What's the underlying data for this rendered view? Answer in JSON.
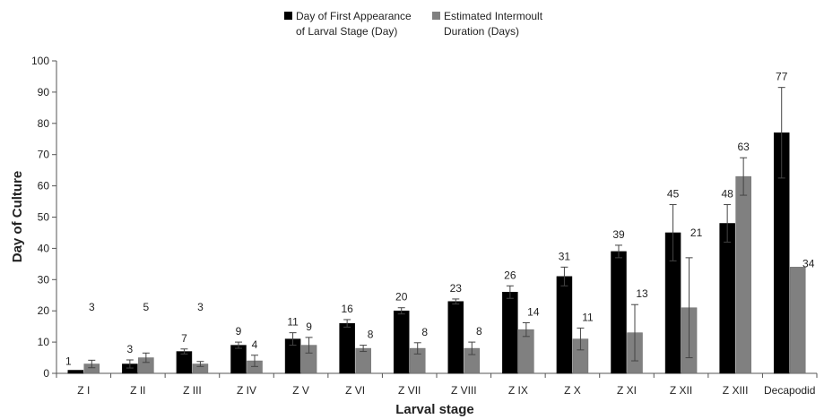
{
  "chart_data": {
    "type": "bar",
    "title": "",
    "xlabel": "Larval stage",
    "ylabel": "Day of Culture",
    "ylim": [
      0,
      100
    ],
    "yticks": [
      0,
      10,
      20,
      30,
      40,
      50,
      60,
      70,
      80,
      90,
      100
    ],
    "grid": false,
    "legend_position": "top",
    "categories": [
      "Z I",
      "Z II",
      "Z III",
      "Z IV",
      "Z V",
      "Z VI",
      "Z VII",
      "Z VIII",
      "Z IX",
      "Z X",
      "Z XI",
      "Z XII",
      "Z XIII",
      "Decapodid"
    ],
    "series": [
      {
        "name": "Day of First Appearance of Larval Stage (Day)",
        "legend_lines": [
          "Day of First Appearance",
          "of Larval Stage (Day)"
        ],
        "color": "#000000",
        "values": [
          1,
          3,
          7,
          9,
          11,
          16,
          20,
          23,
          26,
          31,
          39,
          45,
          48,
          77
        ],
        "error": [
          0,
          1.3,
          0.8,
          1,
          2,
          1.2,
          1,
          0.8,
          2,
          3,
          2,
          9,
          6,
          14.5
        ],
        "labels": [
          "1",
          "3",
          "7",
          "9",
          "11",
          "16",
          "20",
          "23",
          "26",
          "31",
          "39",
          "45",
          "48",
          "77"
        ]
      },
      {
        "name": "Estimated Intermoult Duration (Days)",
        "legend_lines": [
          "Estimated Intermoult",
          "Duration (Days)"
        ],
        "color": "#808080",
        "values": [
          3,
          5,
          3,
          4,
          9,
          8,
          8,
          8,
          14,
          11,
          13,
          21,
          63,
          34
        ],
        "error": [
          1.2,
          1.5,
          0.8,
          1.8,
          2.5,
          1,
          1.8,
          2,
          2.2,
          3.5,
          9,
          16,
          6,
          0
        ],
        "labels": [
          "3",
          "5",
          "3",
          "4",
          "9",
          "8",
          "8",
          "8",
          "14",
          "11",
          "13",
          "21",
          "63",
          "34"
        ]
      }
    ]
  }
}
